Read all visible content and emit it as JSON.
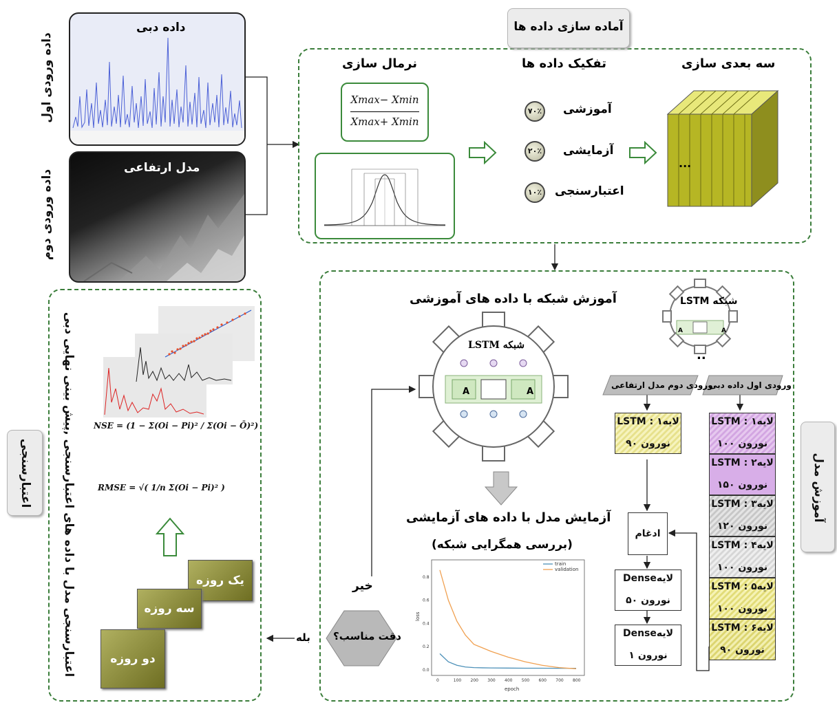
{
  "inputs": {
    "first_input_label": "داده ورودی اول",
    "second_input_label": "داده ورودی دوم",
    "discharge_title": "داده دبی",
    "dem_title": "مدل ارتفاعی"
  },
  "prep": {
    "title": "آماده سازی داده ها",
    "normalization_title": "نرمال سازی",
    "formula_num": "Xmax− Xmin",
    "formula_den": "Xmax+ Xmin",
    "split_title": "تفکیک داده ها",
    "train_label": "آموزشی",
    "train_pct": "۷۰٪",
    "test_label": "آزمایشی",
    "test_pct": "۲۰٪",
    "valid_label": "اعتبارسنجی",
    "valid_pct": "۱۰٪",
    "cube_title": "سه بعدی سازی",
    "cube_dots": "..."
  },
  "training": {
    "section_label": "آموزش مدل",
    "train_title": "آموزش شبکه با داده های آموزشی",
    "small_gear_label": "شبکه LSTM",
    "big_gear_label": "شبکه LSTM",
    "cell_label": "A",
    "dots": "..",
    "test_title": "آزمایش مدل با داده های آزمایشی",
    "test_subtitle": "(بررسی همگرایی شبکه)",
    "decision": "دقت مناسب؟",
    "no": "خیر",
    "yes": "بله",
    "input1_header": "ورودی اول داده دبی",
    "input2_header": "ورودی دوم مدل ارتفاعی",
    "layers1": [
      {
        "l1": "لایه۱ : LSTM",
        "l2": "نورون ۱۰۰"
      },
      {
        "l1": "لایه۲ : LSTM",
        "l2": "نورون ۱۵۰"
      },
      {
        "l1": "لایه۳ : LSTM",
        "l2": "نورون ۱۲۰"
      },
      {
        "l1": "لایه۴ : LSTM",
        "l2": "نورون ۱۰۰"
      },
      {
        "l1": "لایه۵ : LSTM",
        "l2": "نورون ۱۰۰"
      },
      {
        "l1": "لایه۶ : LSTM",
        "l2": "نورون ۹۰"
      }
    ],
    "layer_b": {
      "l1": "لایه۱ : LSTM",
      "l2": "نورون ۹۰"
    },
    "merge": "ادغام",
    "dense1": {
      "l1": "لایهDense",
      "l2": "نورون ۵۰"
    },
    "dense2": {
      "l1": "لایهDense",
      "l2": "نورون ۱"
    }
  },
  "loss_chart": {
    "legend_train": "train",
    "legend_validation": "validation",
    "ylabel": "loss",
    "xlabel": "epoch",
    "x_ticks": [
      "0",
      "100",
      "200",
      "300",
      "400",
      "500",
      "600",
      "700",
      "800"
    ],
    "y_ticks": [
      "0.0",
      "0.2",
      "0.4",
      "0.6",
      "0.8"
    ]
  },
  "validation": {
    "section_label": "اعتبارسنجی",
    "title": "اعتبارسنجی مدل با داده های اعتبارسنجی ,پیش بینی نهایی دبی",
    "nse": "NSE = (1 − Σ(Oi − Pi)² / Σ(Oi − Ō)²)",
    "rmse": "RMSE = √( 1/n Σ(Oi − Pi)² )",
    "one_day": "یک روزه",
    "three_day": "سه روزه",
    "two_day": "دو روزه"
  },
  "chart_data": {
    "type": "line",
    "xlabel": "epoch",
    "ylabel": "loss",
    "x": [
      0,
      50,
      100,
      150,
      200,
      250,
      300,
      400,
      500,
      600,
      700,
      800
    ],
    "series": [
      {
        "name": "train",
        "values": [
          0.14,
          0.07,
          0.04,
          0.025,
          0.02,
          0.018,
          0.017,
          0.016,
          0.015,
          0.015,
          0.014,
          0.014
        ]
      },
      {
        "name": "validation",
        "values": [
          0.86,
          0.6,
          0.42,
          0.3,
          0.22,
          0.19,
          0.16,
          0.11,
          0.07,
          0.04,
          0.02,
          0.01
        ]
      }
    ],
    "xlim": [
      0,
      800
    ],
    "ylim": [
      0,
      0.9
    ]
  }
}
